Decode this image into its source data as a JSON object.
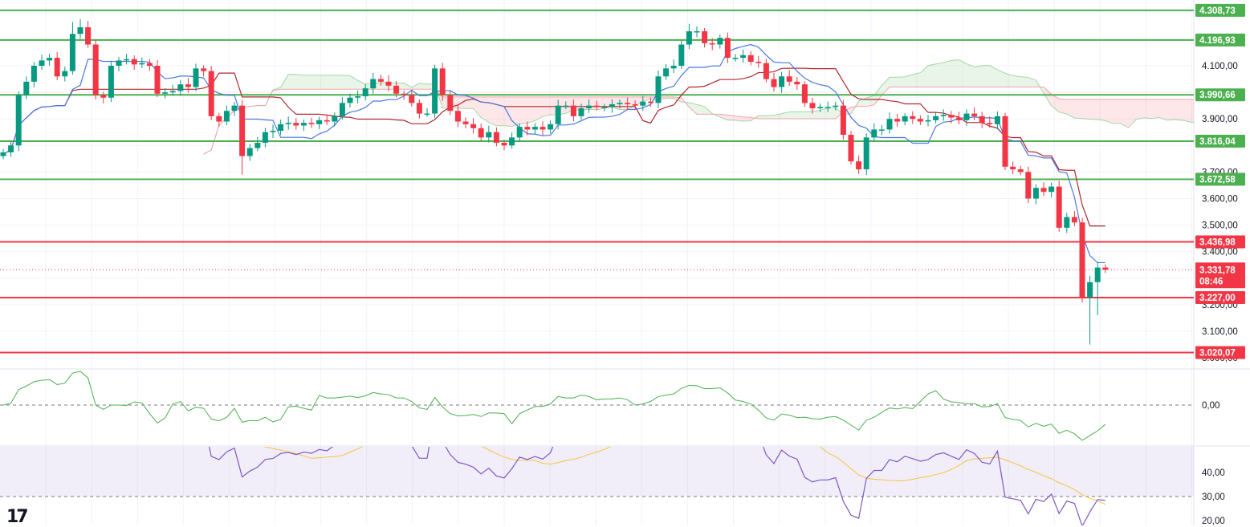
{
  "chart_data": {
    "type": "candlestick",
    "title": "",
    "colors": {
      "up": "#089981",
      "down": "#f23645",
      "support": "#4caf50",
      "resistance": "#f23645",
      "tenkan": "#4a78e0",
      "kijun": "#b0282e",
      "rsi": "#7e57c2",
      "rsi_ma": "#f5c342",
      "momentum": "#4caf50"
    },
    "first_open": 3760,
    "close": [
      3774,
      3800,
      3990,
      4040,
      4100,
      4120,
      4130,
      4060,
      4080,
      4220,
      4245,
      4180,
      3990,
      3980,
      4100,
      4120,
      4125,
      4105,
      4110,
      4100,
      3995,
      4000,
      4005,
      4030,
      4020,
      4090,
      4080,
      3910,
      3890,
      3930,
      3950,
      3760,
      3790,
      3810,
      3850,
      3855,
      3880,
      3885,
      3875,
      3885,
      3880,
      3895,
      3890,
      3910,
      3960,
      3980,
      3985,
      4015,
      4050,
      4040,
      4025,
      3995,
      3990,
      3960,
      3920,
      3920,
      4090,
      3990,
      3930,
      3890,
      3880,
      3865,
      3830,
      3850,
      3810,
      3800,
      3830,
      3870,
      3860,
      3870,
      3860,
      3880,
      3950,
      3950,
      3910,
      3940,
      3950,
      3945,
      3945,
      3955,
      3960,
      3955,
      3950,
      3965,
      3960,
      4060,
      4090,
      4100,
      4180,
      4230,
      4230,
      4185,
      4180,
      4205,
      4130,
      4130,
      4140,
      4115,
      4110,
      4050,
      4020,
      4060,
      4040,
      4030,
      3960,
      3940,
      3945,
      3945,
      3950,
      3840,
      3740,
      3710,
      3830,
      3860,
      3860,
      3900,
      3890,
      3910,
      3900,
      3890,
      3895,
      3910,
      3915,
      3905,
      3895,
      3920,
      3910,
      3885,
      3880,
      3910,
      3720,
      3710,
      3700,
      3600,
      3640,
      3625,
      3645,
      3490,
      3530,
      3510,
      3227,
      3285,
      3340,
      3331.78
    ],
    "extremes": {
      "9": {
        "high": 4265
      },
      "10": {
        "high": 4275
      },
      "89": {
        "high": 4258
      },
      "31": {
        "low": 3690
      },
      "141": {
        "low": 3050
      },
      "142": {
        "low": 3160
      }
    },
    "price_axis": {
      "ticks": [
        {
          "value": 4100,
          "label": "4.100,00"
        },
        {
          "value": 3900,
          "label": "3.900,00"
        },
        {
          "value": 3700,
          "label": "3.700,00"
        },
        {
          "value": 3600,
          "label": "3.600,00"
        },
        {
          "value": 3500,
          "label": "3.500,00"
        },
        {
          "value": 3400,
          "label": "3.400,00"
        },
        {
          "value": 3200,
          "label": "3.200,00"
        },
        {
          "value": 3100,
          "label": "3.100,00"
        },
        {
          "value": 3000,
          "label": "3.000,00"
        }
      ]
    },
    "levels": [
      {
        "value": 4308.73,
        "label": "4.308,73",
        "kind": "support"
      },
      {
        "value": 4196.93,
        "label": "4.196,93",
        "kind": "support"
      },
      {
        "value": 3990.66,
        "label": "3.990,66",
        "kind": "support"
      },
      {
        "value": 3816.04,
        "label": "3.816,04",
        "kind": "support"
      },
      {
        "value": 3672.58,
        "label": "3.672,58",
        "kind": "support"
      },
      {
        "value": 3436.98,
        "label": "3.436,98",
        "kind": "resistance"
      },
      {
        "value": 3227.0,
        "label": "3.227,00",
        "kind": "resistance"
      },
      {
        "value": 3020.07,
        "label": "3.020,07",
        "kind": "resistance"
      }
    ],
    "last_price": {
      "value": 3331.78,
      "label": "3.331,78",
      "countdown": "08:46"
    },
    "momentum_axis": [
      {
        "value": 0,
        "label": "0,00"
      }
    ],
    "rsi_axis": [
      {
        "value": 40,
        "label": "40,00"
      },
      {
        "value": 30,
        "label": "30,00"
      },
      {
        "value": 20,
        "label": "20,00"
      }
    ],
    "rsi_band": [
      30,
      70
    ]
  },
  "logo": "17"
}
